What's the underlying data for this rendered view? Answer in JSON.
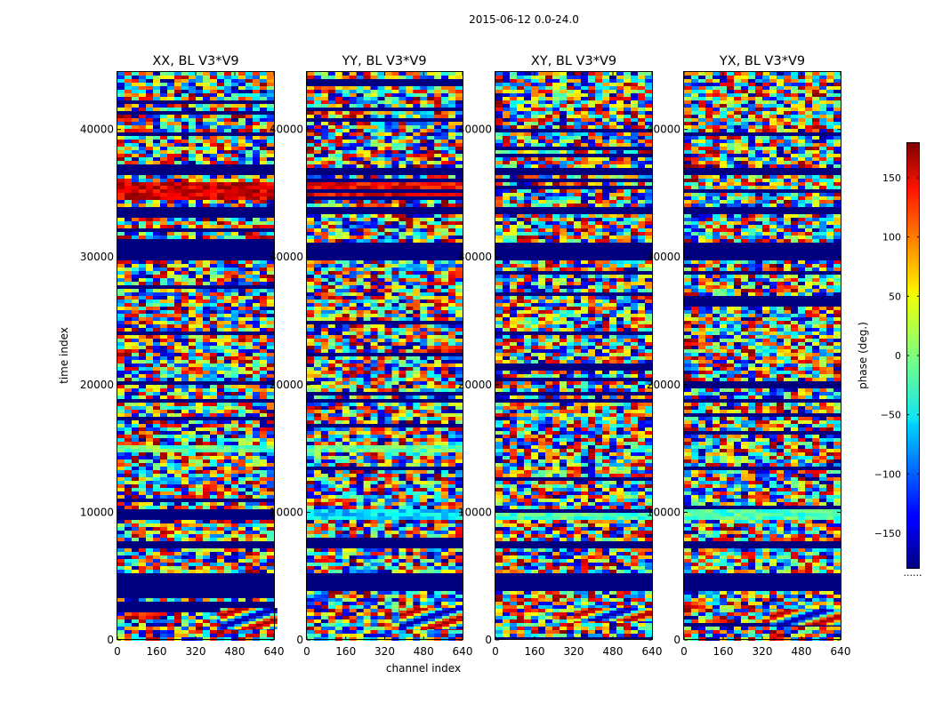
{
  "figure": {
    "suptitle": "2015-06-12 0.0-24.0"
  },
  "chart_data": {
    "type": "heatmap",
    "value_label": "phase (deg.)",
    "value_range": [
      -180,
      180
    ],
    "colormap": "jet",
    "xlabel": "channel index",
    "ylabel": "time index",
    "xlim": [
      0,
      640
    ],
    "ylim": [
      0,
      44500
    ],
    "xticks": [
      "0",
      "160",
      "320",
      "480",
      "640"
    ],
    "yticks": [
      "0",
      "10000",
      "20000",
      "30000",
      "40000"
    ],
    "colorbar_ticks": [
      "150",
      "100",
      "50",
      "0",
      "−50",
      "−100",
      "−150"
    ],
    "colorbar_footnote": "......",
    "panels": [
      {
        "title": "XX, BL V3*V9",
        "flagged_time_ranges": [
          [
            3700,
            5200
          ],
          [
            7300,
            7600
          ],
          [
            18600,
            18900
          ],
          [
            29600,
            31000
          ],
          [
            33400,
            34000
          ],
          [
            36300,
            37000
          ]
        ],
        "smooth_bands": [
          {
            "range": [
              34500,
              35800
            ],
            "dominant_phase": 150
          },
          {
            "range": [
              9500,
              10200
            ],
            "dominant_phase": -20
          },
          {
            "range": [
              14600,
              15200
            ],
            "dominant_phase": -10
          }
        ],
        "fringe_feature": {
          "time_range": [
            1000,
            2500
          ],
          "channel_range": [
            420,
            640
          ]
        }
      },
      {
        "title": "YY, BL V3*V9",
        "flagged_time_ranges": [
          [
            3700,
            5200
          ],
          [
            7300,
            7600
          ],
          [
            18600,
            18900
          ],
          [
            29600,
            31000
          ],
          [
            33400,
            34000
          ],
          [
            36300,
            37000
          ]
        ],
        "smooth_bands": [
          {
            "range": [
              34500,
              35800
            ],
            "dominant_phase": 140
          },
          {
            "range": [
              9500,
              10200
            ],
            "dominant_phase": -60
          },
          {
            "range": [
              14600,
              15200
            ],
            "dominant_phase": -10
          }
        ],
        "fringe_feature": {
          "time_range": [
            1000,
            2500
          ],
          "channel_range": [
            380,
            640
          ]
        }
      },
      {
        "title": "XY, BL V3*V9",
        "flagged_time_ranges": [
          [
            3700,
            5200
          ],
          [
            7300,
            7600
          ],
          [
            18600,
            18900
          ],
          [
            29600,
            31000
          ],
          [
            33400,
            34000
          ],
          [
            36300,
            37000
          ]
        ],
        "smooth_bands": [
          {
            "range": [
              9500,
              10200
            ],
            "dominant_phase": -20
          }
        ],
        "fringe_feature": {
          "time_range": [
            1500,
            2500
          ],
          "channel_range": [
            320,
            640
          ]
        }
      },
      {
        "title": "YX, BL V3*V9",
        "flagged_time_ranges": [
          [
            3700,
            5200
          ],
          [
            7300,
            7600
          ],
          [
            18600,
            18900
          ],
          [
            26000,
            27000
          ],
          [
            29600,
            31000
          ],
          [
            33400,
            34000
          ],
          [
            36300,
            37000
          ]
        ],
        "smooth_bands": [
          {
            "range": [
              9500,
              10200
            ],
            "dominant_phase": -20
          }
        ],
        "fringe_feature": {
          "time_range": [
            1200,
            2400
          ],
          "channel_range": [
            350,
            640
          ]
        }
      }
    ]
  }
}
